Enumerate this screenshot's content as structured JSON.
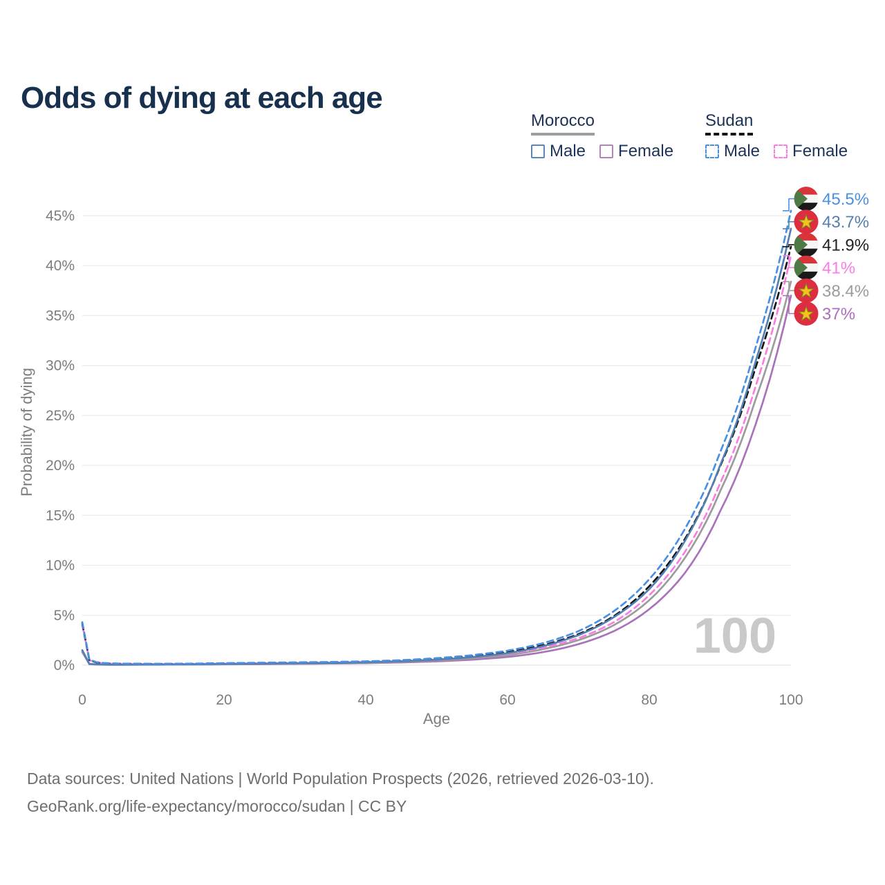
{
  "title": "Odds of dying at each age",
  "legend": {
    "groups": [
      {
        "name": "Morocco",
        "underline_color": "#9e9e9e",
        "underline_style": "solid",
        "items": [
          {
            "label": "Male",
            "color": "#5b86ba",
            "dashed": false
          },
          {
            "label": "Female",
            "color": "#b583bb",
            "dashed": false
          }
        ]
      },
      {
        "name": "Sudan",
        "underline_color": "#151515",
        "underline_style": "dashed",
        "items": [
          {
            "label": "Male",
            "color": "#4a90e2",
            "dashed": true
          },
          {
            "label": "Female",
            "color": "#fb7de4",
            "dashed": true
          }
        ]
      }
    ]
  },
  "chart_data": {
    "type": "line",
    "title": "Odds of dying at each age",
    "xlabel": "Age",
    "ylabel": "Probability of dying",
    "xlim": [
      0,
      100
    ],
    "ylim_pct": [
      0,
      47
    ],
    "grid": "horizontal",
    "x_ticks": [
      0,
      20,
      40,
      60,
      80,
      100
    ],
    "x_tick_labels": [
      "0",
      "20",
      "40",
      "60",
      "80",
      "100"
    ],
    "y_ticks_pct": [
      0,
      5,
      10,
      15,
      20,
      25,
      30,
      35,
      40,
      45
    ],
    "y_tick_labels": [
      "0%",
      "5%",
      "10%",
      "15%",
      "20%",
      "25%",
      "30%",
      "35%",
      "40%",
      "45%"
    ],
    "watermark": "100",
    "x": [
      0,
      1,
      2,
      3,
      4,
      5,
      10,
      15,
      20,
      25,
      30,
      35,
      40,
      45,
      50,
      55,
      60,
      65,
      70,
      75,
      80,
      85,
      90,
      95,
      100
    ],
    "series": [
      {
        "name": "Sudan Male",
        "country": "Sudan",
        "sex": "Male",
        "flag": "sudan",
        "color": "#4a90e2",
        "label_color": "#4a90e2",
        "dashed": true,
        "end_label": "45.5%",
        "end_value_pct": 45.5,
        "values": [
          4.3,
          0.55,
          0.3,
          0.22,
          0.18,
          0.16,
          0.13,
          0.15,
          0.2,
          0.24,
          0.28,
          0.32,
          0.38,
          0.5,
          0.7,
          1.0,
          1.45,
          2.2,
          3.4,
          5.4,
          8.6,
          13.6,
          21.3,
          31.8,
          45.5
        ]
      },
      {
        "name": "Morocco Male",
        "country": "Morocco",
        "sex": "Male",
        "flag": "morocco",
        "color": "#5480b1",
        "label_color": "#5480b1",
        "dashed": false,
        "end_label": "43.7%",
        "end_value_pct": 43.7,
        "values": [
          1.5,
          0.12,
          0.08,
          0.06,
          0.05,
          0.05,
          0.06,
          0.08,
          0.12,
          0.15,
          0.18,
          0.22,
          0.28,
          0.38,
          0.55,
          0.8,
          1.2,
          1.9,
          3.0,
          4.8,
          7.6,
          12.4,
          20.0,
          30.4,
          43.7
        ]
      },
      {
        "name": "Sudan",
        "country": "Sudan",
        "sex": "Both",
        "flag": "sudan",
        "color": "#151515",
        "label_color": "#222222",
        "dashed": true,
        "end_label": "41.9%",
        "end_value_pct": 41.9,
        "values": [
          4.2,
          0.5,
          0.28,
          0.2,
          0.16,
          0.15,
          0.12,
          0.14,
          0.18,
          0.21,
          0.25,
          0.29,
          0.35,
          0.46,
          0.64,
          0.9,
          1.3,
          2.0,
          3.1,
          4.9,
          7.9,
          12.6,
          19.9,
          29.8,
          41.9
        ]
      },
      {
        "name": "Sudan Female",
        "country": "Sudan",
        "sex": "Female",
        "flag": "sudan",
        "color": "#fb7de4",
        "label_color": "#fb7de4",
        "dashed": true,
        "end_label": "41%",
        "end_value_pct": 41.0,
        "values": [
          4.0,
          0.48,
          0.26,
          0.19,
          0.15,
          0.14,
          0.11,
          0.12,
          0.15,
          0.18,
          0.21,
          0.25,
          0.31,
          0.41,
          0.57,
          0.8,
          1.15,
          1.75,
          2.7,
          4.3,
          7.0,
          11.3,
          18.2,
          27.9,
          41.0
        ]
      },
      {
        "name": "Morocco",
        "country": "Morocco",
        "sex": "Both",
        "flag": "morocco",
        "color": "#9c9c9c",
        "label_color": "#9c9c9c",
        "dashed": false,
        "end_label": "38.4%",
        "end_value_pct": 38.4,
        "values": [
          1.4,
          0.11,
          0.07,
          0.055,
          0.05,
          0.045,
          0.055,
          0.07,
          0.1,
          0.13,
          0.16,
          0.19,
          0.24,
          0.33,
          0.47,
          0.68,
          1.0,
          1.6,
          2.5,
          4.0,
          6.5,
          10.7,
          17.4,
          26.6,
          38.4
        ]
      },
      {
        "name": "Morocco Female",
        "country": "Morocco",
        "sex": "Female",
        "flag": "morocco",
        "color": "#a873bb",
        "label_color": "#ab6ec1",
        "dashed": false,
        "end_label": "37%",
        "end_value_pct": 37.0,
        "values": [
          1.3,
          0.1,
          0.065,
          0.05,
          0.045,
          0.04,
          0.05,
          0.06,
          0.08,
          0.1,
          0.13,
          0.16,
          0.2,
          0.27,
          0.38,
          0.55,
          0.82,
          1.3,
          2.1,
          3.4,
          5.6,
          9.2,
          15.4,
          24.1,
          37.0
        ]
      }
    ]
  },
  "footer": {
    "line1": "Data sources: United Nations | World Population Prospects (2026, retrieved 2026-03-10).",
    "line2": "GeoRank.org/life-expectancy/morocco/sudan | CC BY"
  }
}
